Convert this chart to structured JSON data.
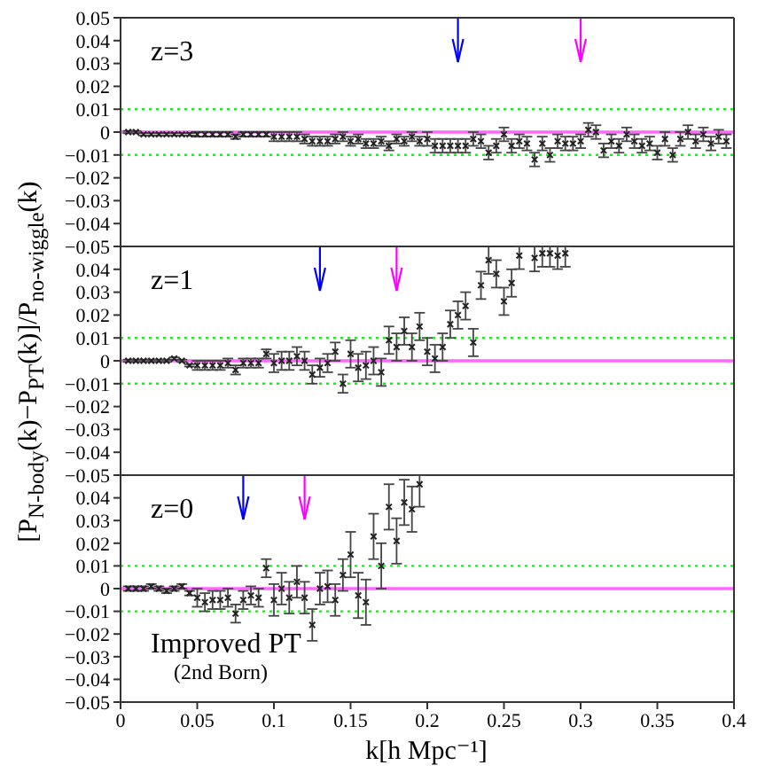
{
  "chart_data": [
    {
      "type": "scatter",
      "annotations": [
        "z=3"
      ],
      "color": "#222222",
      "marker": "cross",
      "x": [
        0.005,
        0.01,
        0.015,
        0.02,
        0.025,
        0.03,
        0.035,
        0.04,
        0.045,
        0.05,
        0.055,
        0.06,
        0.065,
        0.07,
        0.075,
        0.08,
        0.085,
        0.09,
        0.095,
        0.1,
        0.105,
        0.11,
        0.115,
        0.12,
        0.125,
        0.13,
        0.135,
        0.14,
        0.145,
        0.15,
        0.155,
        0.16,
        0.165,
        0.17,
        0.175,
        0.18,
        0.185,
        0.19,
        0.195,
        0.2,
        0.205,
        0.21,
        0.215,
        0.22,
        0.225,
        0.23,
        0.235,
        0.24,
        0.245,
        0.25,
        0.255,
        0.26,
        0.265,
        0.27,
        0.275,
        0.28,
        0.285,
        0.29,
        0.295,
        0.3,
        0.305,
        0.31,
        0.315,
        0.32,
        0.325,
        0.33,
        0.335,
        0.34,
        0.345,
        0.35,
        0.355,
        0.36,
        0.365,
        0.37,
        0.375,
        0.38,
        0.385,
        0.39,
        0.395
      ],
      "values": [
        0,
        0,
        -0.001,
        -0.001,
        -0.001,
        -0.001,
        -0.001,
        -0.001,
        -0.001,
        -0.001,
        -0.001,
        -0.001,
        -0.001,
        -0.001,
        -0.002,
        -0.001,
        -0.001,
        -0.001,
        -0.001,
        -0.002,
        -0.002,
        -0.002,
        -0.002,
        -0.003,
        -0.004,
        -0.004,
        -0.004,
        -0.003,
        -0.002,
        -0.004,
        -0.003,
        -0.005,
        -0.005,
        -0.004,
        -0.006,
        -0.003,
        -0.004,
        -0.002,
        -0.004,
        -0.003,
        -0.006,
        -0.006,
        -0.006,
        -0.006,
        -0.006,
        -0.003,
        -0.004,
        -0.009,
        -0.006,
        -0.001,
        -0.006,
        -0.004,
        -0.005,
        -0.012,
        -0.005,
        -0.01,
        -0.004,
        -0.005,
        -0.005,
        -0.004,
        0.001,
        0,
        -0.008,
        -0.004,
        -0.006,
        -0.001,
        -0.004,
        -0.006,
        -0.005,
        -0.009,
        -0.003,
        -0.01,
        -0.003,
        0,
        -0.004,
        -0.001,
        -0.005,
        -0.002,
        -0.004
      ],
      "errors": [
        0.0005,
        0.0005,
        0.0005,
        0.0005,
        0.0005,
        0.0005,
        0.0005,
        0.0005,
        0.0005,
        0.001,
        0.001,
        0.001,
        0.001,
        0.001,
        0.001,
        0.001,
        0.001,
        0.001,
        0.001,
        0.002,
        0.002,
        0.002,
        0.002,
        0.002,
        0.002,
        0.002,
        0.002,
        0.002,
        0.002,
        0.002,
        0.002,
        0.002,
        0.002,
        0.002,
        0.002,
        0.002,
        0.002,
        0.002,
        0.002,
        0.003,
        0.003,
        0.003,
        0.003,
        0.003,
        0.003,
        0.003,
        0.003,
        0.003,
        0.003,
        0.003,
        0.003,
        0.003,
        0.003,
        0.003,
        0.003,
        0.003,
        0.003,
        0.003,
        0.003,
        0.003,
        0.003,
        0.003,
        0.003,
        0.003,
        0.003,
        0.003,
        0.003,
        0.003,
        0.003,
        0.003,
        0.003,
        0.003,
        0.003,
        0.003,
        0.003,
        0.003,
        0.003,
        0.003,
        0.003
      ],
      "xlim": [
        0,
        0.4
      ],
      "xticks": [
        0,
        0.05,
        0.1,
        0.15,
        0.2,
        0.25,
        0.3,
        0.35,
        0.4
      ],
      "ylim": [
        -0.05,
        0.05
      ],
      "yticks": [
        0.05,
        0.04,
        0.03,
        0.02,
        0.01,
        0,
        -0.01,
        -0.02,
        -0.03,
        -0.04,
        -0.05
      ],
      "tick_labels": "y",
      "ref_lines": [
        {
          "axis": "y",
          "value": 0.01,
          "color": "#33dd33",
          "line_style": "dotted"
        },
        {
          "axis": "y",
          "value": -0.01,
          "color": "#33dd33",
          "line_style": "dotted"
        },
        {
          "axis": "y",
          "value": 0,
          "color": "#ff66ff",
          "line_style": "solid"
        },
        {
          "axis": "x",
          "value": 0.22,
          "color": "#0000ff"
        },
        {
          "axis": "x",
          "value": 0.3,
          "color": "#ff00ff"
        }
      ]
    },
    {
      "type": "scatter",
      "annotations": [
        "z=1"
      ],
      "ylabel": "[P$_{N-body}$(k)−P$_{PT}$(k)]/P$_{no-wiggle}$(k)",
      "color": "#222222",
      "marker": "cross",
      "x": [
        0.005,
        0.01,
        0.015,
        0.02,
        0.025,
        0.03,
        0.035,
        0.04,
        0.045,
        0.05,
        0.055,
        0.06,
        0.065,
        0.07,
        0.075,
        0.08,
        0.085,
        0.09,
        0.095,
        0.1,
        0.105,
        0.11,
        0.115,
        0.12,
        0.125,
        0.13,
        0.135,
        0.14,
        0.145,
        0.15,
        0.155,
        0.16,
        0.165,
        0.17,
        0.175,
        0.18,
        0.185,
        0.19,
        0.195,
        0.2,
        0.205,
        0.21,
        0.215,
        0.22,
        0.225,
        0.23,
        0.235,
        0.24,
        0.245,
        0.25,
        0.255,
        0.26,
        0.265,
        0.27,
        0.275,
        0.28,
        0.285,
        0.29
      ],
      "values": [
        0,
        0,
        0,
        0,
        0,
        0,
        0.001,
        0,
        -0.002,
        -0.002,
        -0.002,
        -0.002,
        -0.002,
        -0.001,
        -0.004,
        -0.001,
        -0.001,
        -0.001,
        0.003,
        -0.001,
        0,
        0,
        0.002,
        0,
        -0.006,
        -0.003,
        -0.001,
        0.004,
        -0.01,
        0.003,
        -0.003,
        -0.002,
        0,
        -0.005,
        0.009,
        0.006,
        0.013,
        0.006,
        0.015,
        0.004,
        0.001,
        0.006,
        0.016,
        0.02,
        0.024,
        0.008,
        0.033,
        0.044,
        0.038,
        0.026,
        0.034,
        0.046,
        null,
        0.045,
        0.047,
        0.047,
        0.046,
        0.047
      ],
      "errors": [
        0.0005,
        0.0005,
        0.0005,
        0.0005,
        0.0005,
        0.0005,
        0.0005,
        0.0005,
        0.0005,
        0.002,
        0.002,
        0.002,
        0.002,
        0.002,
        0.002,
        0.002,
        0.002,
        0.002,
        0.002,
        0.004,
        0.004,
        0.004,
        0.004,
        0.004,
        0.004,
        0.004,
        0.004,
        0.004,
        0.004,
        0.006,
        0.006,
        0.006,
        0.006,
        0.006,
        0.006,
        0.006,
        0.006,
        0.006,
        0.006,
        0.006,
        0.006,
        0.006,
        0.006,
        0.006,
        0.006,
        0.006,
        0.006,
        0.006,
        0.006,
        0.006,
        0.006,
        [
          0.04,
          0.05
        ],
        null,
        [
          0.039,
          0.05
        ],
        [
          0.041,
          0.05
        ],
        [
          0.041,
          0.05
        ],
        [
          0.04,
          0.05
        ],
        [
          0.041,
          0.05
        ]
      ],
      "xlim": [
        0,
        0.4
      ],
      "xticks": [
        0,
        0.05,
        0.1,
        0.15,
        0.2,
        0.25,
        0.3,
        0.35,
        0.4
      ],
      "ylim": [
        -0.05,
        0.05
      ],
      "yticks": [
        {
          "value": 0.05,
          "label": null
        },
        0.04,
        0.03,
        0.02,
        0.01,
        0,
        -0.01,
        -0.02,
        -0.03,
        -0.04,
        -0.05
      ],
      "tick_labels": "y",
      "ref_lines": [
        {
          "axis": "y",
          "value": 0.01,
          "color": "#33dd33",
          "line_style": "dotted"
        },
        {
          "axis": "y",
          "value": -0.01,
          "color": "#33dd33",
          "line_style": "dotted"
        },
        {
          "axis": "y",
          "value": 0,
          "color": "#ff66ff",
          "line_style": "solid"
        },
        {
          "axis": "x",
          "value": 0.13,
          "color": "#0000ff"
        },
        {
          "axis": "x",
          "value": 0.18,
          "color": "#ff00ff"
        }
      ]
    },
    {
      "type": "scatter",
      "annotations": [
        "z=0",
        "Improved PT",
        "(2nd Born)"
      ],
      "xlabel": "k[h Mpc⁻¹]",
      "color": "#222222",
      "marker": "cross",
      "x": [
        0.005,
        0.01,
        0.015,
        0.02,
        0.025,
        0.03,
        0.035,
        0.04,
        0.045,
        0.05,
        0.055,
        0.06,
        0.065,
        0.07,
        0.075,
        0.08,
        0.085,
        0.09,
        0.095,
        0.1,
        0.105,
        0.11,
        0.115,
        0.12,
        0.125,
        0.13,
        0.135,
        0.14,
        0.145,
        0.15,
        0.155,
        0.16,
        0.165,
        0.17,
        0.175,
        0.18,
        0.185,
        0.19,
        0.195
      ],
      "values": [
        0,
        0,
        0,
        0.001,
        0,
        -0.001,
        0,
        0.001,
        -0.002,
        -0.004,
        -0.006,
        -0.005,
        -0.005,
        -0.004,
        -0.011,
        -0.005,
        -0.003,
        -0.004,
        0.009,
        -0.005,
        0,
        -0.004,
        0.003,
        -0.004,
        -0.016,
        0,
        0.001,
        -0.005,
        0.006,
        0.015,
        -0.003,
        -0.006,
        0.023,
        0.01,
        0.036,
        0.021,
        0.038,
        0.035,
        0.046
      ],
      "errors": [
        0.001,
        0.001,
        0.001,
        0.001,
        0.001,
        0.001,
        0.001,
        0.001,
        0.001,
        0.004,
        0.004,
        0.004,
        0.004,
        0.004,
        0.004,
        0.004,
        0.004,
        0.004,
        0.004,
        0.007,
        0.007,
        0.007,
        0.007,
        0.007,
        0.007,
        0.007,
        0.007,
        0.007,
        0.007,
        0.01,
        0.01,
        0.01,
        0.01,
        0.01,
        0.01,
        0.01,
        0.01,
        0.01,
        [
          0.036,
          0.05
        ]
      ],
      "xlim": [
        0,
        0.4
      ],
      "xticks": [
        0,
        0.05,
        0.1,
        0.15,
        0.2,
        0.25,
        0.3,
        0.35,
        0.4
      ],
      "ylim": [
        -0.05,
        0.05
      ],
      "yticks": [
        {
          "value": 0.05,
          "label": null
        },
        0.04,
        0.03,
        0.02,
        0.01,
        0,
        -0.01,
        -0.02,
        -0.03,
        -0.04,
        -0.05
      ],
      "ref_lines": [
        {
          "axis": "y",
          "value": 0.01,
          "color": "#33dd33",
          "line_style": "dotted"
        },
        {
          "axis": "y",
          "value": -0.01,
          "color": "#33dd33",
          "line_style": "dotted"
        },
        {
          "axis": "y",
          "value": 0,
          "color": "#ff66ff",
          "line_style": "solid"
        },
        {
          "axis": "x",
          "value": 0.08,
          "color": "#0000ff"
        },
        {
          "axis": "x",
          "value": 0.12,
          "color": "#ff00ff"
        }
      ]
    }
  ]
}
